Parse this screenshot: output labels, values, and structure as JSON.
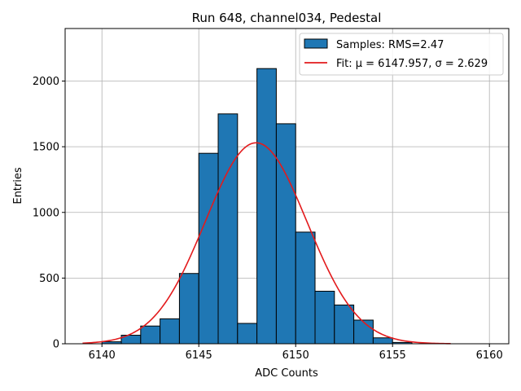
{
  "chart_data": {
    "type": "bar",
    "title": "Run 648, channel034, Pedestal",
    "xlabel": "ADC Counts",
    "ylabel": "Entries",
    "xlim": [
      6138.1,
      6161.0
    ],
    "ylim": [
      0,
      2400
    ],
    "xticks": [
      6140,
      6145,
      6150,
      6155,
      6160
    ],
    "yticks": [
      0,
      500,
      1000,
      1500,
      2000
    ],
    "grid": true,
    "legend_position": "top-right",
    "bin_width": 1,
    "bins": [
      6140,
      6141,
      6142,
      6143,
      6144,
      6145,
      6146,
      6147,
      6148,
      6149,
      6150,
      6151,
      6152,
      6153,
      6154,
      6155
    ],
    "counts": [
      15,
      65,
      135,
      190,
      535,
      1450,
      1750,
      155,
      2095,
      1675,
      850,
      400,
      295,
      180,
      45,
      10
    ],
    "hist_label": "Samples: RMS=2.47",
    "fit": {
      "label": "Fit: μ = 6147.957, σ = 2.629",
      "mu": 6147.957,
      "sigma": 2.629,
      "amplitude": 1530,
      "x_range": [
        6139,
        6158
      ]
    },
    "colors": {
      "bar_fill": "#1f77b4",
      "bar_edge": "#000000",
      "fit_line": "#e31a1c",
      "grid": "#b0b0b0"
    }
  }
}
